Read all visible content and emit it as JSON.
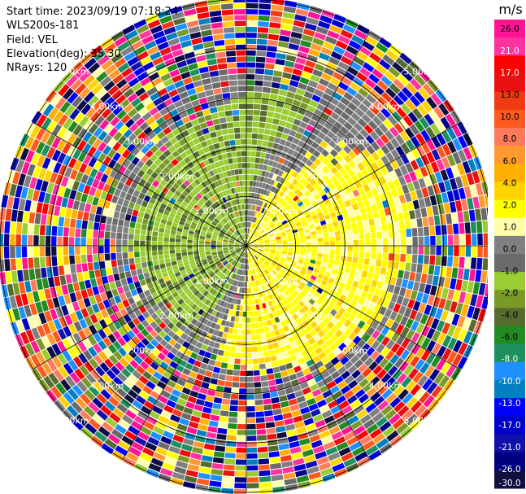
{
  "header": {
    "start_time": "Start time: 2023/09/19 07:18:24",
    "instrument": "WLS200s-181",
    "field": "Field: VEL",
    "elevation": "Elevation(deg): 35.30",
    "nrays": "NRays: 120"
  },
  "chart_data": {
    "type": "heatmap",
    "projection": "polar (PPI)",
    "n_rays": 120,
    "range_ring_labels": [
      "1.00km",
      "2.00km",
      "3.00km",
      "4.00km",
      "5.00km"
    ],
    "range_rings_km": [
      1,
      2,
      3,
      4,
      5
    ],
    "max_range_km": 5,
    "colorbar": {
      "unit": "m/s",
      "range": [
        -30,
        30
      ],
      "tick_labels": [
        "26.0",
        "21.0",
        "17.0",
        "13.0",
        "10.0",
        "8.0",
        "6.0",
        "4.0",
        "2.0",
        "1.0",
        "0.0",
        "-1.0",
        "-2.0",
        "-4.0",
        "-6.0",
        "-8.0",
        "-10.0",
        "-13.0",
        "-17.0",
        "-21.0",
        "-26.0",
        "-30.0"
      ],
      "colors": [
        "#ff1493",
        "#ff33a0",
        "#ff0000",
        "#e81010",
        "#f23a12",
        "#ff5a1e",
        "#ff7a5a",
        "#ff9a30",
        "#ffb000",
        "#ffd400",
        "#ffff00",
        "#ffffaa",
        "#808080",
        "#6a6a6a",
        "#9acd32",
        "#7a9a28",
        "#556b2f",
        "#228b22",
        "#1e9060",
        "#1e90ff",
        "#0080c0",
        "#0000ff",
        "#0000cd",
        "#1010aa",
        "#000080",
        "#101040"
      ]
    },
    "field_pattern": {
      "description": "near-range velocities: yellow (+2 to +4 m/s) to the east, olive/yellow-green (-2 to -4 m/s) to the west, gray (~0) along the north-south zero line; outer ranges are noise",
      "positive_sector_center_deg": 90,
      "negative_sector_center_deg": 270
    }
  }
}
